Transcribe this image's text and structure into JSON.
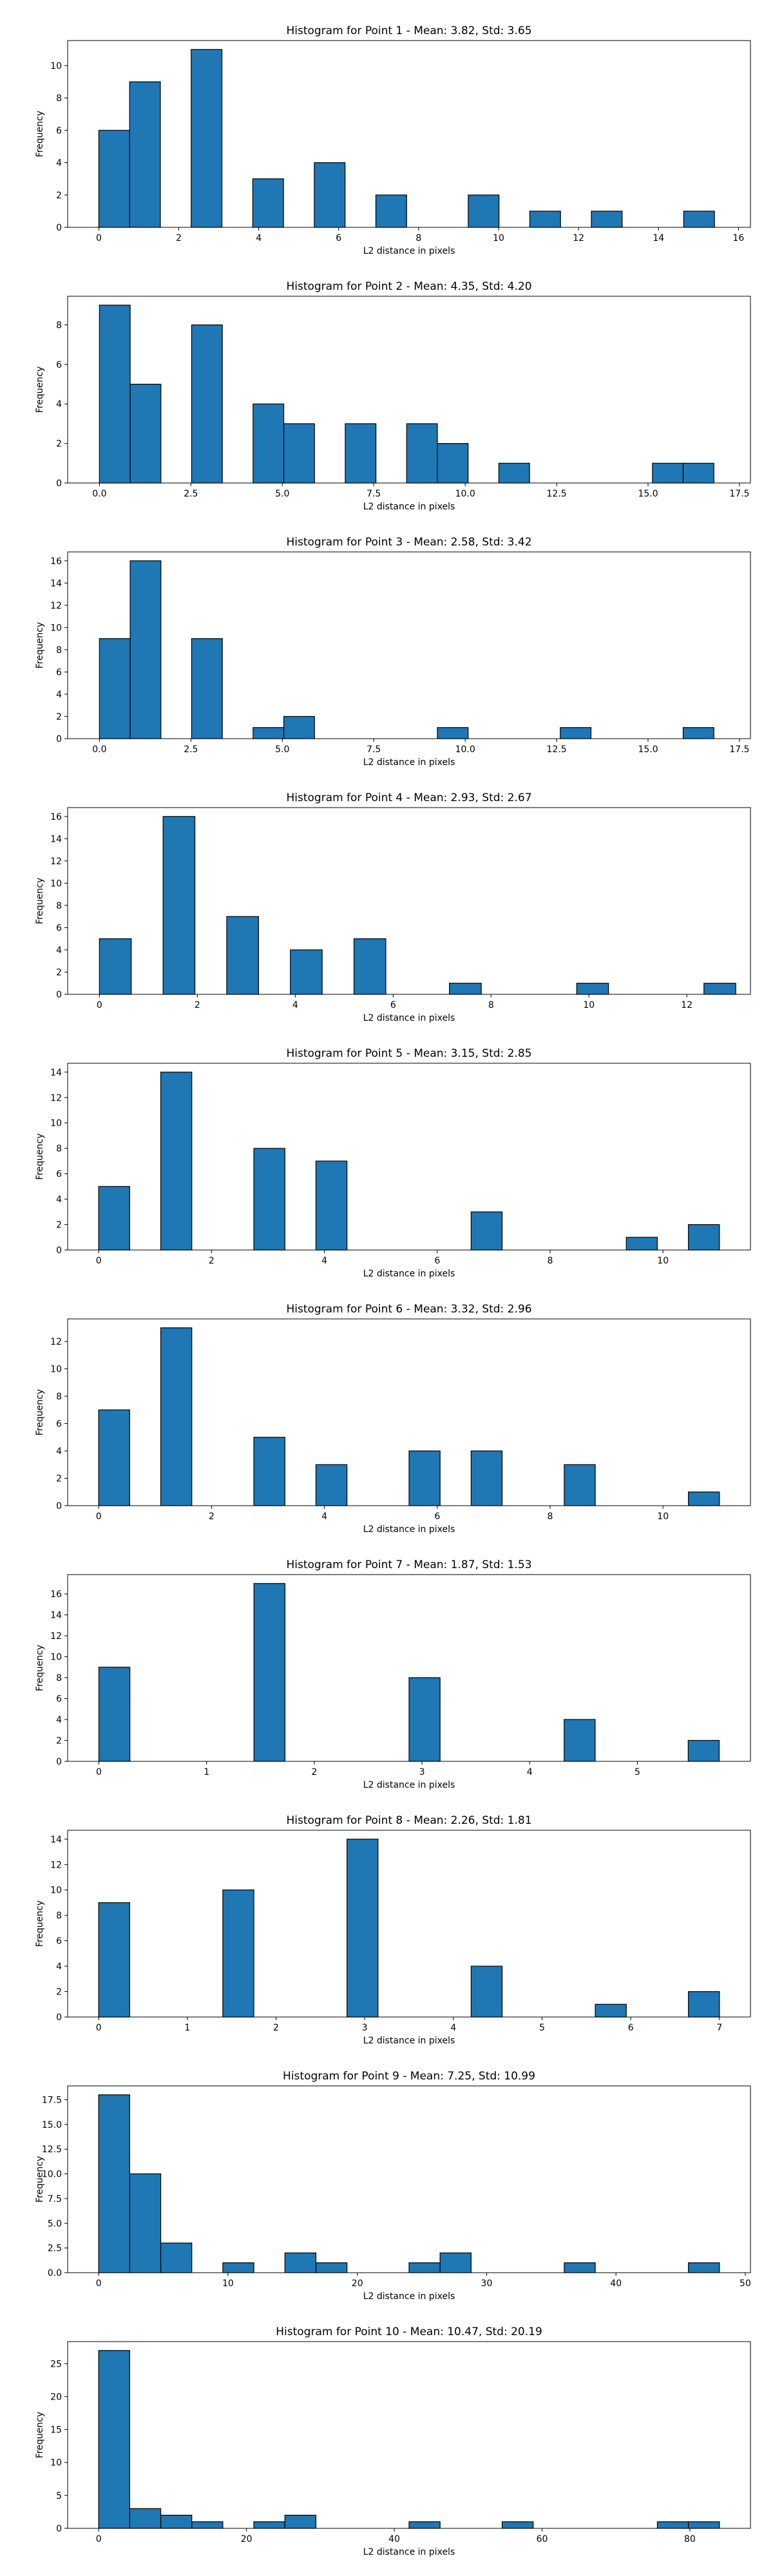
{
  "chart_data": [
    {
      "type": "bar",
      "title": "Histogram for Point 1 - Mean: 3.82, Std: 3.65",
      "xlabel": "L2 distance in pixels",
      "ylabel": "Frequency",
      "xlim": [
        -0.78,
        16.3
      ],
      "ylim": [
        0,
        11.55
      ],
      "xticks": [
        0,
        2,
        4,
        6,
        8,
        10,
        12,
        14,
        16
      ],
      "yticks": [
        0,
        2,
        4,
        6,
        8,
        10
      ],
      "bins": [
        {
          "x0": 0.0,
          "x1": 0.77,
          "count": 6
        },
        {
          "x0": 0.77,
          "x1": 1.54,
          "count": 9
        },
        {
          "x0": 2.31,
          "x1": 3.08,
          "count": 11
        },
        {
          "x0": 3.85,
          "x1": 4.62,
          "count": 3
        },
        {
          "x0": 5.39,
          "x1": 6.16,
          "count": 4
        },
        {
          "x0": 6.93,
          "x1": 7.7,
          "count": 2
        },
        {
          "x0": 9.24,
          "x1": 10.01,
          "count": 2
        },
        {
          "x0": 10.78,
          "x1": 11.55,
          "count": 1
        },
        {
          "x0": 12.32,
          "x1": 13.09,
          "count": 1
        },
        {
          "x0": 14.63,
          "x1": 15.4,
          "count": 1
        }
      ]
    },
    {
      "type": "bar",
      "title": "Histogram for Point 2 - Mean: 4.35, Std: 4.20",
      "xlabel": "L2 distance in pixels",
      "ylabel": "Frequency",
      "xlim": [
        -0.87,
        17.8
      ],
      "ylim": [
        0,
        9.45
      ],
      "xticks": [
        0.0,
        2.5,
        5.0,
        7.5,
        10.0,
        12.5,
        15.0,
        17.5
      ],
      "xtick_labels": [
        "0.0",
        "2.5",
        "5.0",
        "7.5",
        "10.0",
        "12.5",
        "15.0",
        "17.5"
      ],
      "yticks": [
        0,
        2,
        4,
        6,
        8
      ],
      "bins": [
        {
          "x0": 0.0,
          "x1": 0.84,
          "count": 9
        },
        {
          "x0": 0.84,
          "x1": 1.68,
          "count": 5
        },
        {
          "x0": 2.52,
          "x1": 3.36,
          "count": 8
        },
        {
          "x0": 4.2,
          "x1": 5.04,
          "count": 4
        },
        {
          "x0": 5.04,
          "x1": 5.88,
          "count": 3
        },
        {
          "x0": 6.72,
          "x1": 7.56,
          "count": 3
        },
        {
          "x0": 8.4,
          "x1": 9.24,
          "count": 3
        },
        {
          "x0": 9.24,
          "x1": 10.08,
          "count": 2
        },
        {
          "x0": 10.92,
          "x1": 11.76,
          "count": 1
        },
        {
          "x0": 15.12,
          "x1": 15.96,
          "count": 1
        },
        {
          "x0": 15.96,
          "x1": 16.8,
          "count": 1
        }
      ]
    },
    {
      "type": "bar",
      "title": "Histogram for Point 3 - Mean: 2.58, Std: 3.42",
      "xlabel": "L2 distance in pixels",
      "ylabel": "Frequency",
      "xlim": [
        -0.87,
        17.8
      ],
      "ylim": [
        0,
        16.8
      ],
      "xticks": [
        0.0,
        2.5,
        5.0,
        7.5,
        10.0,
        12.5,
        15.0,
        17.5
      ],
      "xtick_labels": [
        "0.0",
        "2.5",
        "5.0",
        "7.5",
        "10.0",
        "12.5",
        "15.0",
        "17.5"
      ],
      "yticks": [
        0,
        2,
        4,
        6,
        8,
        10,
        12,
        14,
        16
      ],
      "bins": [
        {
          "x0": 0.0,
          "x1": 0.84,
          "count": 9
        },
        {
          "x0": 0.84,
          "x1": 1.68,
          "count": 16
        },
        {
          "x0": 2.52,
          "x1": 3.36,
          "count": 9
        },
        {
          "x0": 4.2,
          "x1": 5.04,
          "count": 1
        },
        {
          "x0": 5.04,
          "x1": 5.88,
          "count": 2
        },
        {
          "x0": 9.24,
          "x1": 10.08,
          "count": 1
        },
        {
          "x0": 12.6,
          "x1": 13.44,
          "count": 1
        },
        {
          "x0": 15.96,
          "x1": 16.8,
          "count": 1
        }
      ]
    },
    {
      "type": "bar",
      "title": "Histogram for Point 4 - Mean: 2.93, Std: 2.67",
      "xlabel": "L2 distance in pixels",
      "ylabel": "Frequency",
      "xlim": [
        -0.65,
        13.3
      ],
      "ylim": [
        0,
        16.8
      ],
      "xticks": [
        0,
        2,
        4,
        6,
        8,
        10,
        12
      ],
      "yticks": [
        0,
        2,
        4,
        6,
        8,
        10,
        12,
        14,
        16
      ],
      "bins": [
        {
          "x0": 0.0,
          "x1": 0.65,
          "count": 5
        },
        {
          "x0": 1.3,
          "x1": 1.95,
          "count": 16
        },
        {
          "x0": 2.6,
          "x1": 3.25,
          "count": 7
        },
        {
          "x0": 3.9,
          "x1": 4.55,
          "count": 4
        },
        {
          "x0": 5.2,
          "x1": 5.85,
          "count": 5
        },
        {
          "x0": 7.15,
          "x1": 7.8,
          "count": 1
        },
        {
          "x0": 9.75,
          "x1": 10.4,
          "count": 1
        },
        {
          "x0": 12.35,
          "x1": 13.0,
          "count": 1
        }
      ]
    },
    {
      "type": "bar",
      "title": "Histogram for Point 5 - Mean: 3.15, Std: 2.85",
      "xlabel": "L2 distance in pixels",
      "ylabel": "Frequency",
      "xlim": [
        -0.55,
        11.55
      ],
      "ylim": [
        0,
        14.7
      ],
      "xticks": [
        0,
        2,
        4,
        6,
        8,
        10
      ],
      "yticks": [
        0,
        2,
        4,
        6,
        8,
        10,
        12,
        14
      ],
      "bins": [
        {
          "x0": 0.0,
          "x1": 0.55,
          "count": 5
        },
        {
          "x0": 1.1,
          "x1": 1.65,
          "count": 14
        },
        {
          "x0": 2.75,
          "x1": 3.3,
          "count": 8
        },
        {
          "x0": 3.85,
          "x1": 4.4,
          "count": 7
        },
        {
          "x0": 6.6,
          "x1": 7.15,
          "count": 3
        },
        {
          "x0": 9.35,
          "x1": 9.9,
          "count": 1
        },
        {
          "x0": 10.45,
          "x1": 11.0,
          "count": 2
        }
      ]
    },
    {
      "type": "bar",
      "title": "Histogram for Point 6 - Mean: 3.32, Std: 2.96",
      "xlabel": "L2 distance in pixels",
      "ylabel": "Frequency",
      "xlim": [
        -0.55,
        11.55
      ],
      "ylim": [
        0,
        13.65
      ],
      "xticks": [
        0,
        2,
        4,
        6,
        8,
        10
      ],
      "yticks": [
        0,
        2,
        4,
        6,
        8,
        10,
        12
      ],
      "bins": [
        {
          "x0": 0.0,
          "x1": 0.55,
          "count": 7
        },
        {
          "x0": 1.1,
          "x1": 1.65,
          "count": 13
        },
        {
          "x0": 2.75,
          "x1": 3.3,
          "count": 5
        },
        {
          "x0": 3.85,
          "x1": 4.4,
          "count": 3
        },
        {
          "x0": 5.5,
          "x1": 6.05,
          "count": 4
        },
        {
          "x0": 6.6,
          "x1": 7.15,
          "count": 4
        },
        {
          "x0": 8.25,
          "x1": 8.8,
          "count": 3
        },
        {
          "x0": 10.45,
          "x1": 11.0,
          "count": 1
        }
      ]
    },
    {
      "type": "bar",
      "title": "Histogram for Point 7 - Mean: 1.87, Std: 1.53",
      "xlabel": "L2 distance in pixels",
      "ylabel": "Frequency",
      "xlim": [
        -0.29,
        6.05
      ],
      "ylim": [
        0,
        17.85
      ],
      "xticks": [
        0,
        1,
        2,
        3,
        4,
        5
      ],
      "yticks": [
        0,
        2,
        4,
        6,
        8,
        10,
        12,
        14,
        16
      ],
      "bins": [
        {
          "x0": 0.0,
          "x1": 0.288,
          "count": 9
        },
        {
          "x0": 1.44,
          "x1": 1.728,
          "count": 17
        },
        {
          "x0": 2.88,
          "x1": 3.168,
          "count": 8
        },
        {
          "x0": 4.32,
          "x1": 4.608,
          "count": 4
        },
        {
          "x0": 5.472,
          "x1": 5.76,
          "count": 2
        }
      ]
    },
    {
      "type": "bar",
      "title": "Histogram for Point 8 - Mean: 2.26, Std: 1.81",
      "xlabel": "L2 distance in pixels",
      "ylabel": "Frequency",
      "xlim": [
        -0.35,
        7.35
      ],
      "ylim": [
        0,
        14.7
      ],
      "xticks": [
        0,
        1,
        2,
        3,
        4,
        5,
        6,
        7
      ],
      "yticks": [
        0,
        2,
        4,
        6,
        8,
        10,
        12,
        14
      ],
      "bins": [
        {
          "x0": 0.0,
          "x1": 0.35,
          "count": 9
        },
        {
          "x0": 1.4,
          "x1": 1.75,
          "count": 10
        },
        {
          "x0": 2.8,
          "x1": 3.15,
          "count": 14
        },
        {
          "x0": 4.2,
          "x1": 4.55,
          "count": 4
        },
        {
          "x0": 5.6,
          "x1": 5.95,
          "count": 1
        },
        {
          "x0": 6.65,
          "x1": 7.0,
          "count": 2
        }
      ]
    },
    {
      "type": "bar",
      "title": "Histogram for Point 9 - Mean: 7.25, Std: 10.99",
      "xlabel": "L2 distance in pixels",
      "ylabel": "Frequency",
      "xlim": [
        -2.4,
        50.4
      ],
      "ylim": [
        0,
        18.9
      ],
      "xticks": [
        0,
        10,
        20,
        30,
        40,
        50
      ],
      "yticks": [
        0.0,
        2.5,
        5.0,
        7.5,
        10.0,
        12.5,
        15.0,
        17.5
      ],
      "ytick_labels": [
        "0.0",
        "2.5",
        "5.0",
        "7.5",
        "10.0",
        "12.5",
        "15.0",
        "17.5"
      ],
      "bins": [
        {
          "x0": 0.0,
          "x1": 2.4,
          "count": 18
        },
        {
          "x0": 2.4,
          "x1": 4.8,
          "count": 10
        },
        {
          "x0": 4.8,
          "x1": 7.2,
          "count": 3
        },
        {
          "x0": 9.6,
          "x1": 12.0,
          "count": 1
        },
        {
          "x0": 14.4,
          "x1": 16.8,
          "count": 2
        },
        {
          "x0": 16.8,
          "x1": 19.2,
          "count": 1
        },
        {
          "x0": 24.0,
          "x1": 26.4,
          "count": 1
        },
        {
          "x0": 26.4,
          "x1": 28.8,
          "count": 2
        },
        {
          "x0": 36.0,
          "x1": 38.4,
          "count": 1
        },
        {
          "x0": 45.6,
          "x1": 48.0,
          "count": 1
        }
      ]
    },
    {
      "type": "bar",
      "title": "Histogram for Point 10 - Mean: 10.47, Std: 20.19",
      "xlabel": "L2 distance in pixels",
      "ylabel": "Frequency",
      "xlim": [
        -4.2,
        88.2
      ],
      "ylim": [
        0,
        28.35
      ],
      "xticks": [
        0,
        20,
        40,
        60,
        80
      ],
      "yticks": [
        0,
        5,
        10,
        15,
        20,
        25
      ],
      "bins": [
        {
          "x0": 0.0,
          "x1": 4.2,
          "count": 27
        },
        {
          "x0": 4.2,
          "x1": 8.4,
          "count": 3
        },
        {
          "x0": 8.4,
          "x1": 12.6,
          "count": 2
        },
        {
          "x0": 12.6,
          "x1": 16.8,
          "count": 1
        },
        {
          "x0": 21.0,
          "x1": 25.2,
          "count": 1
        },
        {
          "x0": 25.2,
          "x1": 29.4,
          "count": 2
        },
        {
          "x0": 42.0,
          "x1": 46.2,
          "count": 1
        },
        {
          "x0": 54.6,
          "x1": 58.8,
          "count": 1
        },
        {
          "x0": 75.6,
          "x1": 79.8,
          "count": 1
        },
        {
          "x0": 79.8,
          "x1": 84.0,
          "count": 1
        }
      ]
    }
  ],
  "colors": {
    "bar_fill": "#1f77b4",
    "bar_edge": "#000000",
    "axis": "#000000"
  }
}
